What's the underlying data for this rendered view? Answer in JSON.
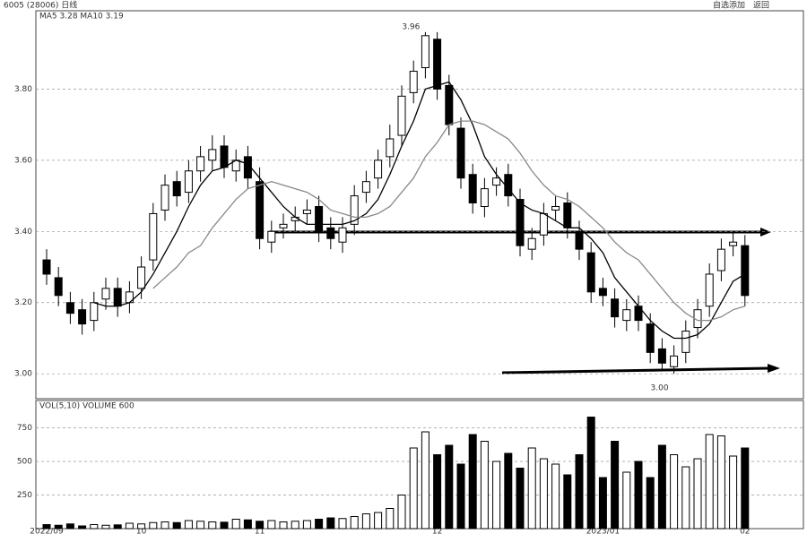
{
  "header": {
    "title": "6005 (28006) 日线",
    "buttons": [
      "自选添加",
      "返回"
    ]
  },
  "chart_data": [
    {
      "type": "candlestick",
      "legend": "MA5 3.28 MA10 3.19",
      "categories": [
        "2022/09",
        null,
        null,
        null,
        null,
        null,
        null,
        null,
        "10",
        null,
        null,
        null,
        null,
        null,
        null,
        null,
        null,
        null,
        "11",
        null,
        null,
        null,
        null,
        null,
        null,
        null,
        null,
        null,
        null,
        null,
        null,
        null,
        null,
        "12",
        null,
        null,
        null,
        null,
        null,
        null,
        null,
        null,
        null,
        null,
        null,
        null,
        null,
        "2023/01",
        null,
        null,
        null,
        null,
        null,
        null,
        null,
        null,
        null,
        null,
        null,
        "02"
      ],
      "open": [
        3.32,
        3.27,
        3.2,
        3.18,
        3.15,
        3.21,
        3.24,
        3.2,
        3.24,
        3.32,
        3.46,
        3.54,
        3.51,
        3.57,
        3.6,
        3.64,
        3.57,
        3.61,
        3.54,
        3.37,
        3.41,
        3.43,
        3.45,
        3.47,
        3.41,
        3.37,
        3.42,
        3.51,
        3.55,
        3.61,
        3.67,
        3.79,
        3.86,
        3.94,
        3.81,
        3.69,
        3.56,
        3.47,
        3.53,
        3.56,
        3.49,
        3.35,
        3.39,
        3.46,
        3.48,
        3.4,
        3.34,
        3.24,
        3.21,
        3.15,
        3.19,
        3.14,
        3.07,
        3.02,
        3.06,
        3.13,
        3.19,
        3.29,
        3.36,
        3.36
      ],
      "high": [
        3.35,
        3.3,
        3.23,
        3.21,
        3.23,
        3.27,
        3.27,
        3.26,
        3.33,
        3.48,
        3.56,
        3.57,
        3.6,
        3.64,
        3.67,
        3.67,
        3.63,
        3.64,
        3.58,
        3.43,
        3.45,
        3.47,
        3.49,
        3.5,
        3.44,
        3.44,
        3.53,
        3.57,
        3.63,
        3.7,
        3.81,
        3.88,
        3.96,
        3.96,
        3.84,
        3.72,
        3.59,
        3.55,
        3.58,
        3.59,
        3.52,
        3.41,
        3.48,
        3.5,
        3.51,
        3.43,
        3.37,
        3.27,
        3.24,
        3.21,
        3.22,
        3.17,
        3.1,
        3.08,
        3.15,
        3.21,
        3.31,
        3.38,
        3.4,
        3.39
      ],
      "low": [
        3.25,
        3.19,
        3.14,
        3.11,
        3.12,
        3.18,
        3.16,
        3.17,
        3.21,
        3.29,
        3.43,
        3.47,
        3.48,
        3.54,
        3.57,
        3.55,
        3.54,
        3.52,
        3.35,
        3.34,
        3.38,
        3.4,
        3.42,
        3.37,
        3.35,
        3.34,
        3.39,
        3.48,
        3.52,
        3.58,
        3.64,
        3.76,
        3.83,
        3.77,
        3.67,
        3.52,
        3.45,
        3.44,
        3.5,
        3.47,
        3.33,
        3.32,
        3.36,
        3.43,
        3.38,
        3.32,
        3.2,
        3.19,
        3.13,
        3.12,
        3.12,
        3.03,
        3.01,
        3.0,
        3.03,
        3.1,
        3.16,
        3.26,
        3.33,
        3.19
      ],
      "close": [
        3.28,
        3.22,
        3.17,
        3.14,
        3.2,
        3.24,
        3.19,
        3.23,
        3.3,
        3.45,
        3.53,
        3.5,
        3.57,
        3.61,
        3.63,
        3.58,
        3.6,
        3.55,
        3.38,
        3.4,
        3.42,
        3.44,
        3.46,
        3.4,
        3.38,
        3.41,
        3.5,
        3.54,
        3.6,
        3.66,
        3.78,
        3.85,
        3.95,
        3.8,
        3.7,
        3.55,
        3.48,
        3.52,
        3.55,
        3.5,
        3.36,
        3.38,
        3.45,
        3.47,
        3.41,
        3.35,
        3.23,
        3.22,
        3.16,
        3.18,
        3.15,
        3.06,
        3.03,
        3.05,
        3.12,
        3.18,
        3.28,
        3.35,
        3.37,
        3.22
      ],
      "series": [
        {
          "name": "MA5",
          "color": "#000000",
          "values": [
            null,
            null,
            null,
            null,
            3.2,
            3.19,
            3.19,
            3.2,
            3.23,
            3.28,
            3.34,
            3.4,
            3.47,
            3.53,
            3.57,
            3.58,
            3.6,
            3.59,
            3.55,
            3.51,
            3.47,
            3.44,
            3.42,
            3.42,
            3.42,
            3.42,
            3.43,
            3.45,
            3.49,
            3.56,
            3.64,
            3.71,
            3.8,
            3.81,
            3.82,
            3.77,
            3.7,
            3.61,
            3.56,
            3.52,
            3.48,
            3.46,
            3.45,
            3.43,
            3.41,
            3.41,
            3.38,
            3.34,
            3.27,
            3.23,
            3.19,
            3.15,
            3.12,
            3.1,
            3.1,
            3.11,
            3.14,
            3.2,
            3.26,
            3.28
          ]
        },
        {
          "name": "MA10",
          "color": "#888888",
          "values": [
            null,
            null,
            null,
            null,
            null,
            null,
            null,
            null,
            null,
            3.24,
            3.27,
            3.3,
            3.34,
            3.36,
            3.41,
            3.45,
            3.49,
            3.52,
            3.53,
            3.54,
            3.53,
            3.52,
            3.51,
            3.49,
            3.46,
            3.45,
            3.44,
            3.44,
            3.45,
            3.47,
            3.51,
            3.55,
            3.61,
            3.65,
            3.7,
            3.71,
            3.71,
            3.7,
            3.68,
            3.66,
            3.62,
            3.57,
            3.53,
            3.5,
            3.49,
            3.47,
            3.44,
            3.41,
            3.37,
            3.34,
            3.32,
            3.28,
            3.24,
            3.2,
            3.17,
            3.15,
            3.15,
            3.16,
            3.18,
            3.19
          ]
        }
      ],
      "annotations": [
        {
          "index": 32,
          "label": "3.96"
        },
        {
          "index": 53,
          "label": "3.00"
        }
      ],
      "ylim": [
        2.93,
        4.02
      ],
      "yticks": [
        {
          "value": 3.0,
          "label": "3.00"
        },
        {
          "value": 3.2,
          "label": "3.20"
        },
        {
          "value": 3.4,
          "label": "3.40"
        },
        {
          "value": 3.6,
          "label": "3.60"
        },
        {
          "value": 3.8,
          "label": "3.80"
        }
      ],
      "grid": true
    },
    {
      "type": "bar",
      "legend": "VOL(5,10) VOLUME 600",
      "color": "#000000",
      "values": [
        30,
        25,
        35,
        20,
        30,
        25,
        28,
        40,
        35,
        45,
        50,
        45,
        60,
        55,
        50,
        48,
        70,
        65,
        55,
        60,
        50,
        55,
        60,
        70,
        80,
        75,
        90,
        110,
        120,
        150,
        250,
        600,
        720,
        550,
        620,
        480,
        700,
        650,
        500,
        560,
        450,
        600,
        520,
        480,
        400,
        550,
        830,
        380,
        650,
        420,
        500,
        380,
        620,
        550,
        460,
        520,
        700,
        690,
        540,
        600
      ],
      "ylim": [
        0,
        900
      ],
      "yticks": [
        250,
        500,
        750
      ],
      "grid": true
    }
  ]
}
